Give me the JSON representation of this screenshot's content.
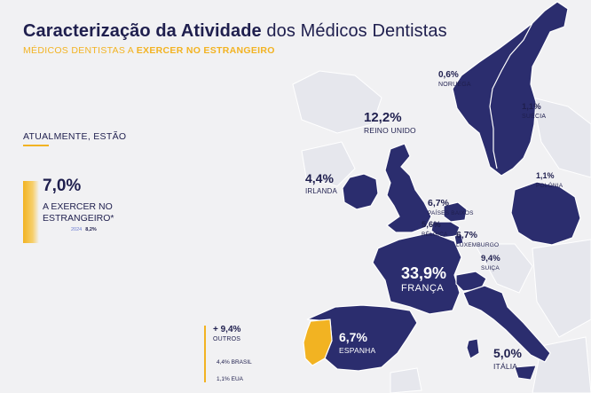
{
  "header": {
    "title_bold": "Caracterização da Atividade",
    "title_light": " dos Médicos Dentistas",
    "subtitle_prefix": "MÉDICOS DENTISTAS A ",
    "subtitle_bold": "EXERCER NO ESTRANGEIRO"
  },
  "panel": {
    "status_label": "ATUALMENTE, ESTÃO",
    "kpi_value": "7,0%",
    "kpi_label": "A EXERCER NO ESTRANGEIRO*",
    "prev_year": "2024",
    "prev_value": "8,2%"
  },
  "countries": [
    {
      "key": "noruega",
      "value": "0,6%",
      "name": "NORUEGA"
    },
    {
      "key": "suecia",
      "value": "1,1%",
      "name": "SUÉCIA"
    },
    {
      "key": "reino_unido",
      "value": "12,2%",
      "name": "REINO UNIDO"
    },
    {
      "key": "irlanda",
      "value": "4,4%",
      "name": "IRLANDA"
    },
    {
      "key": "polonia",
      "value": "1,1%",
      "name": "POLÓNIA"
    },
    {
      "key": "paises_baixos",
      "value": "6,7%",
      "name": "PAÍSES BAIXOS"
    },
    {
      "key": "belgica",
      "value": "5,6%",
      "name": "BÉLGICA"
    },
    {
      "key": "luxemburgo",
      "value": "6,7%",
      "name": "LUXEMBURGO"
    },
    {
      "key": "suica",
      "value": "9,4%",
      "name": "SUIÇA"
    },
    {
      "key": "franca",
      "value": "33,9%",
      "name": "FRANÇA"
    },
    {
      "key": "espanha",
      "value": "6,7%",
      "name": "ESPANHA"
    },
    {
      "key": "italia",
      "value": "5,0%",
      "name": "ITÁLIA"
    }
  ],
  "others": {
    "value": "9,4%",
    "prefix": "+",
    "label": "OUTROS",
    "brasil": "4,4% BRASIL",
    "eua": "1,1% EUA"
  },
  "colors": {
    "navy": "#2b2d6e",
    "accent": "#f2b322",
    "background": "#f1f1f3",
    "light_land": "#e7e8ee"
  }
}
